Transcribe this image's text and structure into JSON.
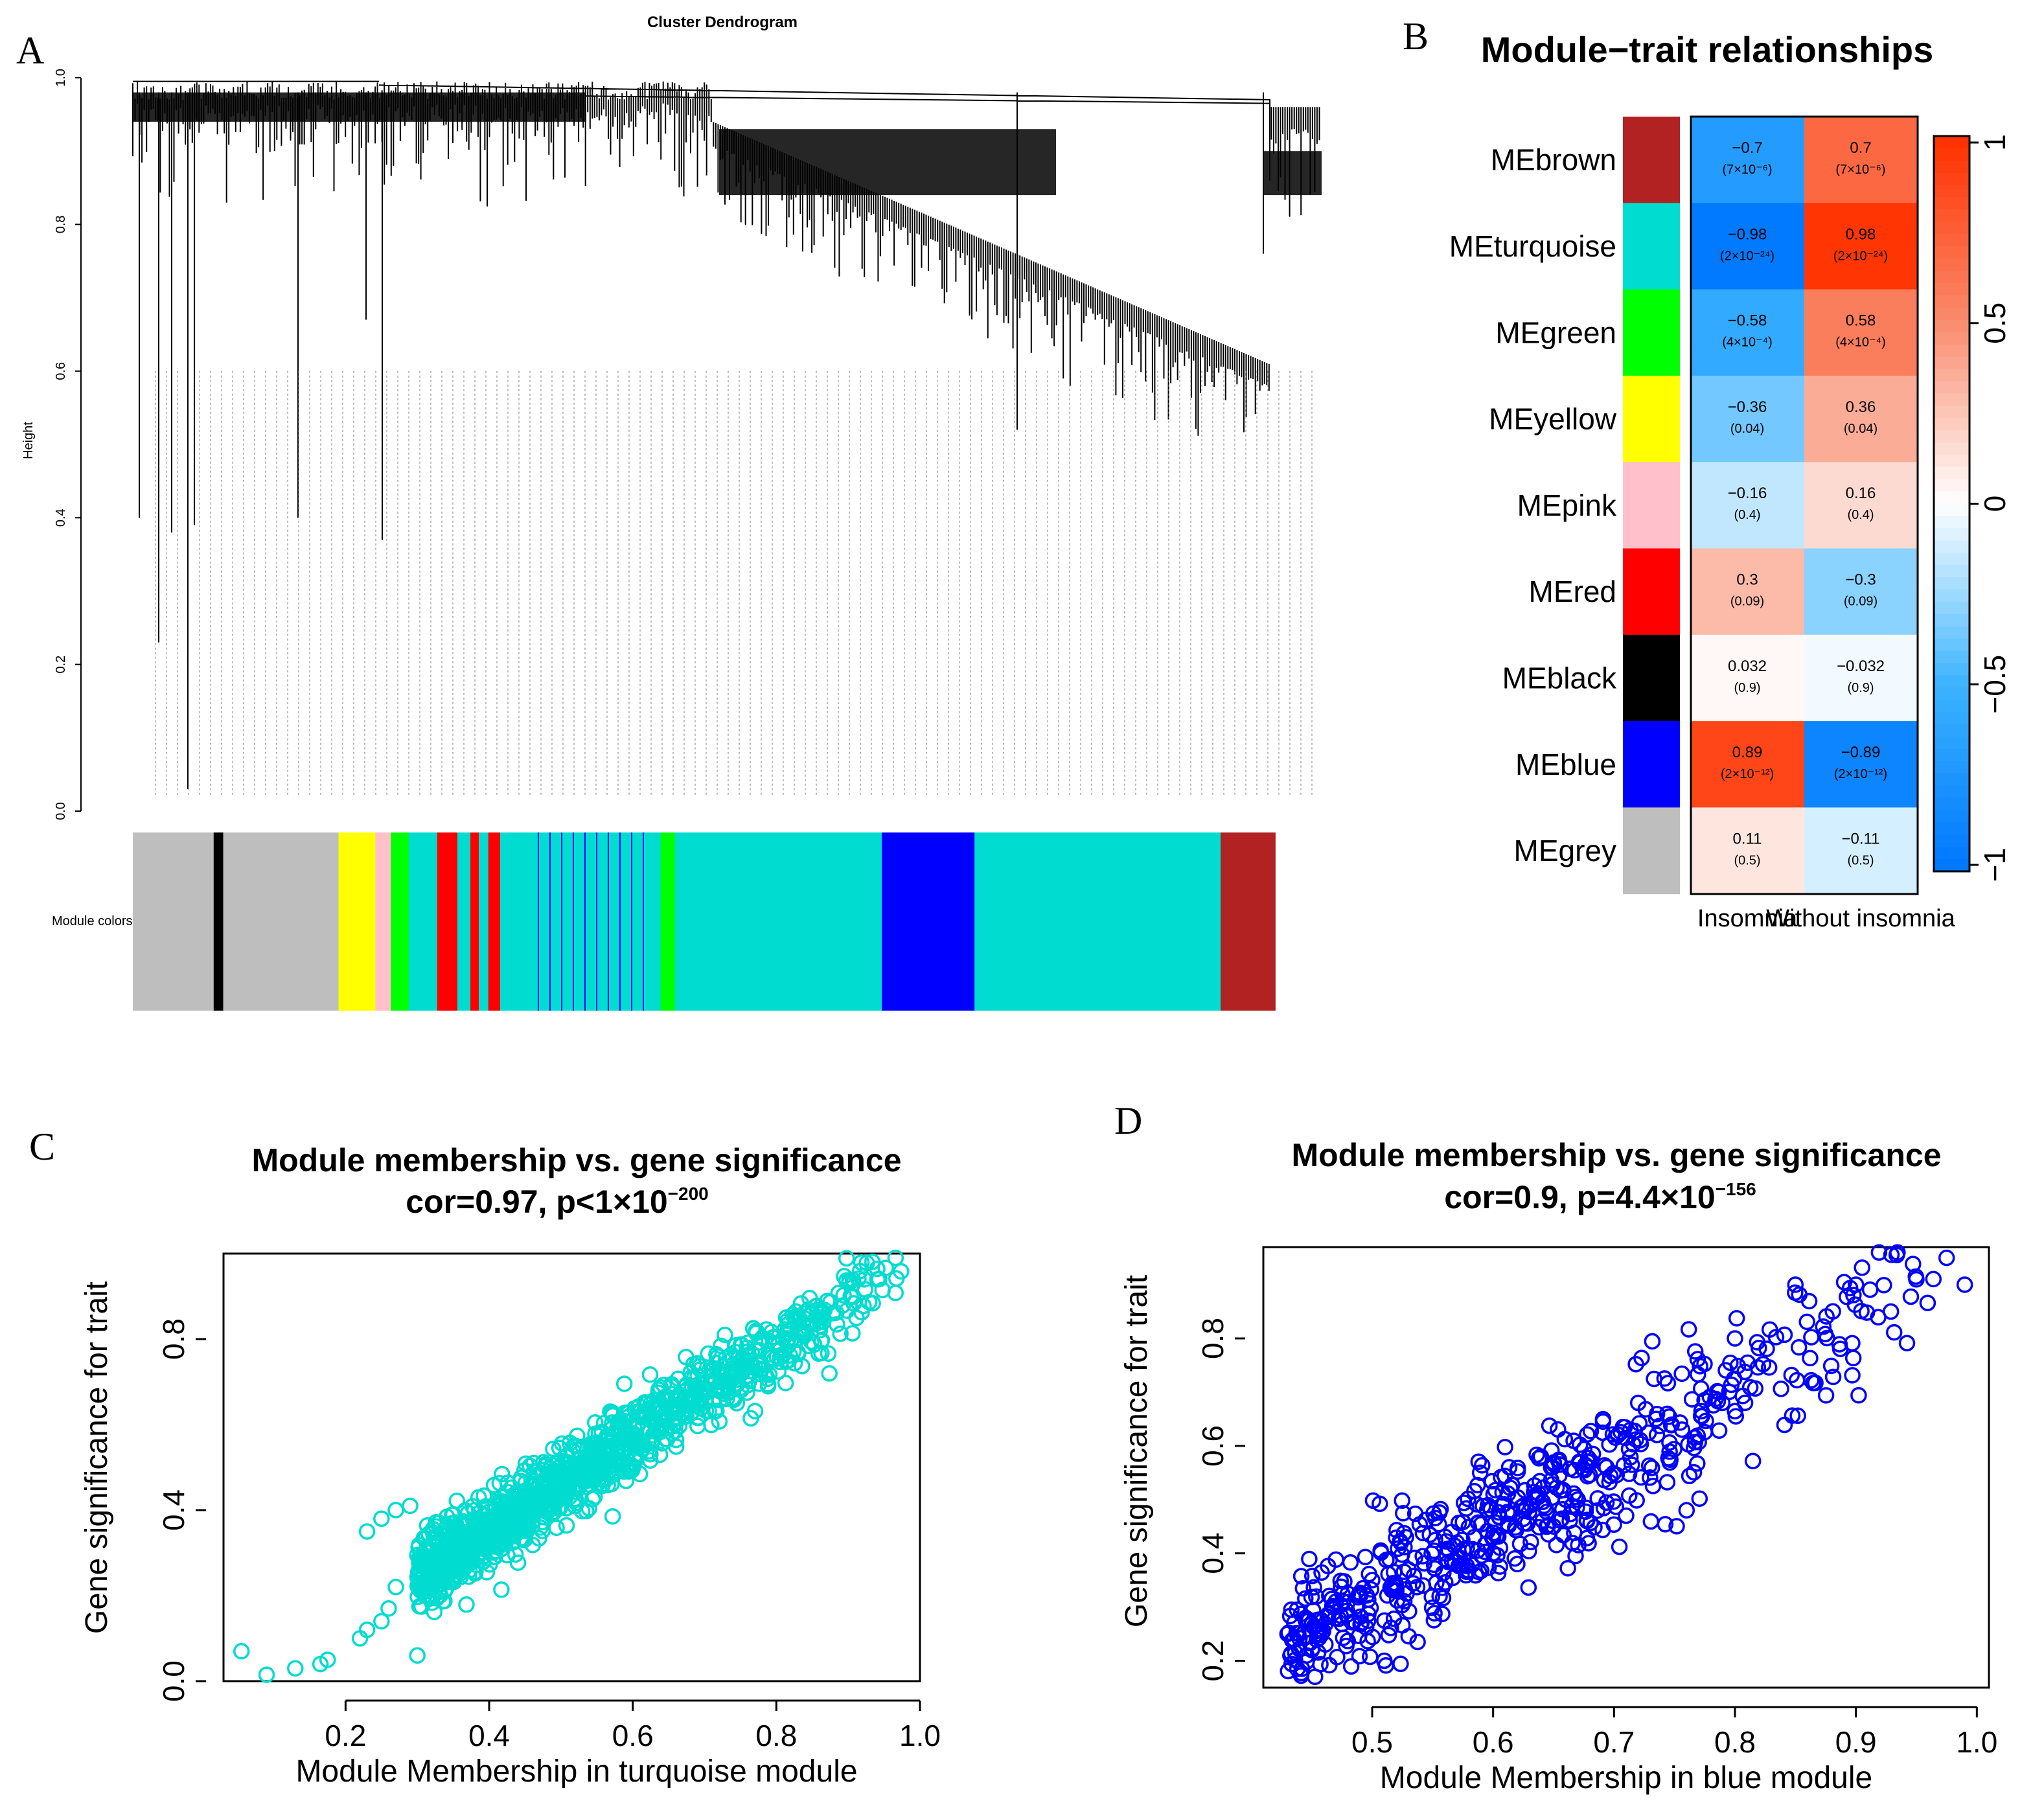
{
  "panels": {
    "A": "A",
    "B": "B",
    "C": "C",
    "D": "D"
  },
  "dendrogram": {
    "title": "Cluster Dendrogram",
    "ylabel": "Height",
    "yticks": [
      "0.0",
      "0.2",
      "0.4",
      "0.6",
      "0.8",
      "1.0"
    ],
    "color_label": "Module colors",
    "colors": {
      "grey": "#bebebe",
      "black": "#000000",
      "yellow": "#ffff00",
      "pink": "#ffc0cb",
      "green": "#00ff00",
      "red": "#ff0000",
      "turquoise": "#00dcd0",
      "blue": "#0000ff",
      "brown": "#b22222"
    },
    "segments": [
      {
        "c": "grey",
        "w": 0.068
      },
      {
        "c": "black",
        "w": 0.008
      },
      {
        "c": "grey",
        "w": 0.097
      },
      {
        "c": "yellow",
        "w": 0.031
      },
      {
        "c": "pink",
        "w": 0.013
      },
      {
        "c": "green",
        "w": 0.015
      },
      {
        "c": "turquoise",
        "w": 0.024
      },
      {
        "c": "red",
        "w": 0.017
      },
      {
        "c": "turquoise",
        "w": 0.011
      },
      {
        "c": "red",
        "w": 0.007
      },
      {
        "c": "turquoise",
        "w": 0.008
      },
      {
        "c": "red",
        "w": 0.01
      },
      {
        "c": "turquoise",
        "w": 0.135
      },
      {
        "c": "green",
        "w": 0.012
      },
      {
        "c": "turquoise",
        "w": 0.174
      },
      {
        "c": "blue",
        "w": 0.078
      },
      {
        "c": "turquoise",
        "w": 0.207
      },
      {
        "c": "brown",
        "w": 0.046
      }
    ]
  },
  "heatmap": {
    "title": "Module−trait relationships",
    "traits": [
      "Insomnia",
      "Without insomnia"
    ],
    "legend_ticks": [
      "1",
      "0.5",
      "0",
      "−0.5",
      "−1"
    ],
    "rows": [
      {
        "module": "MEbrown",
        "color": "#b22222",
        "r": [
          -0.7,
          0.7
        ],
        "labels": [
          "−0.7",
          "0.7"
        ],
        "pvals": [
          "(7×10⁻⁶)",
          "(7×10⁻⁶)"
        ]
      },
      {
        "module": "MEturquoise",
        "color": "#00dcd0",
        "r": [
          -0.98,
          0.98
        ],
        "labels": [
          "−0.98",
          "0.98"
        ],
        "pvals": [
          "(2×10⁻²⁴)",
          "(2×10⁻²⁴)"
        ]
      },
      {
        "module": "MEgreen",
        "color": "#00ff00",
        "r": [
          -0.58,
          0.58
        ],
        "labels": [
          "−0.58",
          "0.58"
        ],
        "pvals": [
          "(4×10⁻⁴)",
          "(4×10⁻⁴)"
        ]
      },
      {
        "module": "MEyellow",
        "color": "#ffff00",
        "r": [
          -0.36,
          0.36
        ],
        "labels": [
          "−0.36",
          "0.36"
        ],
        "pvals": [
          "(0.04)",
          "(0.04)"
        ]
      },
      {
        "module": "MEpink",
        "color": "#ffc0cb",
        "r": [
          -0.16,
          0.16
        ],
        "labels": [
          "−0.16",
          "0.16"
        ],
        "pvals": [
          "(0.4)",
          "(0.4)"
        ]
      },
      {
        "module": "MEred",
        "color": "#ff0000",
        "r": [
          0.3,
          -0.3
        ],
        "labels": [
          "0.3",
          "−0.3"
        ],
        "pvals": [
          "(0.09)",
          "(0.09)"
        ]
      },
      {
        "module": "MEblack",
        "color": "#000000",
        "r": [
          0.032,
          -0.032
        ],
        "labels": [
          "0.032",
          "−0.032"
        ],
        "pvals": [
          "(0.9)",
          "(0.9)"
        ]
      },
      {
        "module": "MEblue",
        "color": "#0000ff",
        "r": [
          0.89,
          -0.89
        ],
        "labels": [
          "0.89",
          "−0.89"
        ],
        "pvals": [
          "(2×10⁻¹²)",
          "(2×10⁻¹²)"
        ]
      },
      {
        "module": "MEgrey",
        "color": "#bebebe",
        "r": [
          0.11,
          -0.11
        ],
        "labels": [
          "0.11",
          "−0.11"
        ],
        "pvals": [
          "(0.5)",
          "(0.5)"
        ]
      }
    ]
  },
  "chart_data": [
    {
      "type": "scatter",
      "title_line1": "Module membership vs. gene significance",
      "title_line2": "cor=0.97, p<1×10",
      "title_exp": "−200",
      "xlabel": "Module Membership in turquoise module",
      "ylabel": "Gene significance for trait",
      "color": "#00dcd0",
      "xlim": [
        0.03,
        1.0
      ],
      "ylim": [
        0.0,
        1.0
      ],
      "xticks": [
        "0.2",
        "0.4",
        "0.6",
        "0.8",
        "1.0"
      ],
      "yticks": [
        "0.0",
        "0.4",
        "0.8"
      ],
      "trend": {
        "x0": 0.3,
        "x1": 0.98,
        "slope": 1.08,
        "intercept": -0.08,
        "spread": 0.045
      },
      "sample_points": [
        [
          0.055,
          0.07
        ],
        [
          0.09,
          0.015
        ],
        [
          0.13,
          0.03
        ],
        [
          0.165,
          0.04
        ],
        [
          0.175,
          0.05
        ],
        [
          0.22,
          0.1
        ],
        [
          0.23,
          0.12
        ],
        [
          0.25,
          0.14
        ],
        [
          0.26,
          0.17
        ],
        [
          0.27,
          0.22
        ],
        [
          0.23,
          0.35
        ],
        [
          0.25,
          0.38
        ],
        [
          0.27,
          0.4
        ],
        [
          0.29,
          0.41
        ],
        [
          0.3,
          0.06
        ],
        [
          0.31,
          0.2
        ],
        [
          0.33,
          0.37
        ],
        [
          0.35,
          0.39
        ]
      ],
      "n_points": 1200
    },
    {
      "type": "scatter",
      "title_line1": "Module membership vs. gene significance",
      "title_line2": "cor=0.9, p=4.4×10",
      "title_exp": "−156",
      "xlabel": "Module Membership in blue module",
      "ylabel": "Gene significance for trait",
      "color": "#0000ff",
      "xlim": [
        0.41,
        1.01
      ],
      "ylim": [
        0.15,
        0.97
      ],
      "xticks": [
        "0.5",
        "0.6",
        "0.7",
        "0.8",
        "0.9",
        "1.0"
      ],
      "yticks": [
        "0.2",
        "0.4",
        "0.6",
        "0.8"
      ],
      "trend": {
        "x0": 0.43,
        "x1": 0.99,
        "slope": 1.25,
        "intercept": -0.3,
        "spread": 0.06
      },
      "sample_points": [
        [
          0.43,
          0.25
        ],
        [
          0.445,
          0.28
        ],
        [
          0.45,
          0.22
        ],
        [
          0.455,
          0.25
        ],
        [
          0.47,
          0.31
        ],
        [
          0.5,
          0.35
        ],
        [
          0.51,
          0.2
        ],
        [
          0.52,
          0.33
        ],
        [
          0.53,
          0.37
        ],
        [
          0.57,
          0.42
        ],
        [
          0.6,
          0.43
        ],
        [
          0.62,
          0.38
        ],
        [
          0.65,
          0.45
        ],
        [
          0.66,
          0.5
        ],
        [
          0.67,
          0.5
        ],
        [
          0.71,
          0.47
        ],
        [
          0.72,
          0.68
        ],
        [
          0.76,
          0.48
        ],
        [
          0.8,
          0.8
        ],
        [
          0.85,
          0.9
        ],
        [
          0.9,
          0.9
        ],
        [
          0.95,
          0.91
        ],
        [
          0.975,
          0.95
        ],
        [
          0.99,
          0.9
        ]
      ],
      "n_points": 560
    }
  ]
}
